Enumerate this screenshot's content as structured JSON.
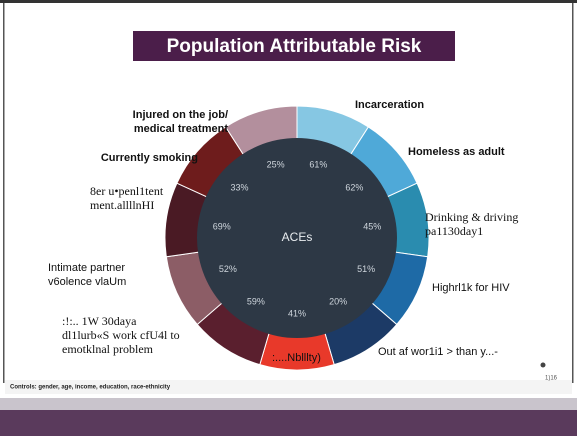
{
  "slide": {
    "title": "Population Attributable Risk",
    "center_label": "ACEs",
    "segments": [
      {
        "label": [
          "Incarceration"
        ],
        "value": "61%",
        "color": "#86c7e3"
      },
      {
        "label": [
          "Homeless as adult"
        ],
        "value": "62%",
        "color": "#4fa9d8"
      },
      {
        "label": [
          "Drinking & driving",
          "pa1130day1"
        ],
        "value": "45%",
        "color": "#2a8caf"
      },
      {
        "label": [
          "Highrl1k for HIV"
        ],
        "value": "51%",
        "color": "#1e6aa6"
      },
      {
        "label": [
          "Out af wor1i1 > than y...-"
        ],
        "value": "20%",
        "color": "#1c3a66"
      },
      {
        "label": [
          ":....Nblllty)"
        ],
        "value": "41%",
        "color": "#e8392a"
      },
      {
        "label": [
          ":!:.. 1W 30daya",
          "dl1lurb«S work cfU4l to",
          "emotklnal problem"
        ],
        "value": "59%",
        "color": "#5a1f2e"
      },
      {
        "label": [
          "Intimate partner",
          "v6olence vlaUm"
        ],
        "value": "52%",
        "color": "#8c5d66"
      },
      {
        "label": [
          "8er u•penl1tent",
          "ment.allllnHI"
        ],
        "value": "69%",
        "color": "#4a1a24"
      },
      {
        "label": [
          "Currently smoking"
        ],
        "value": "33%",
        "color": "#6e1c1c"
      },
      {
        "label": [
          "Injured on the job/",
          "medical treatment"
        ],
        "value": "25%",
        "color": "#b38f9d"
      }
    ],
    "footnote": "Controls: gender, age, income, education, race-ethnicity",
    "page_number": "1)16"
  }
}
